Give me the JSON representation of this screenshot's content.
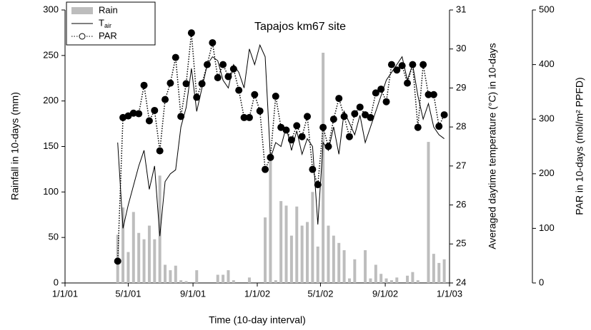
{
  "chart_data": {
    "type": "bar-line",
    "title": "Tapajos km67 site",
    "x_label": "Time (10-day interval)",
    "y_label": "Rainfall in 10-days (mm)",
    "y2_label": "Averaged daytime temperature (°C) in 10-days",
    "y3_label": "PAR in 10-days (mol/m² PPFD)",
    "xlim": [
      0,
      730
    ],
    "xticks": [
      {
        "value": 0,
        "label": "1/1/01"
      },
      {
        "value": 120,
        "label": "5/1/01"
      },
      {
        "value": 243,
        "label": "9/1/01"
      },
      {
        "value": 365,
        "label": "1/1/02"
      },
      {
        "value": 485,
        "label": "5/1/02"
      },
      {
        "value": 608,
        "label": "9/1/02"
      },
      {
        "value": 730,
        "label": "1/1/03"
      }
    ],
    "ylim": [
      0,
      300
    ],
    "yticks": [
      0,
      50,
      100,
      150,
      200,
      250,
      300
    ],
    "y2lim": [
      24,
      31
    ],
    "y2ticks": [
      24,
      25,
      26,
      27,
      28,
      29,
      30,
      31
    ],
    "y3lim": [
      0,
      500
    ],
    "y3ticks": [
      0,
      100,
      200,
      300,
      400,
      500
    ],
    "x": [
      100,
      110,
      120,
      130,
      140,
      150,
      160,
      170,
      180,
      190,
      200,
      210,
      220,
      230,
      240,
      250,
      260,
      270,
      280,
      290,
      300,
      310,
      320,
      330,
      340,
      350,
      360,
      370,
      380,
      390,
      400,
      410,
      420,
      430,
      440,
      450,
      460,
      470,
      480,
      490,
      500,
      510,
      520,
      530,
      540,
      550,
      560,
      570,
      580,
      590,
      600,
      610,
      620,
      630,
      640,
      650,
      660,
      670,
      680,
      690,
      700,
      710,
      720
    ],
    "series": [
      {
        "name": "Rain",
        "color": "#bdbdbd",
        "kind": "bar",
        "axis": "y",
        "values": [
          53,
          83,
          34,
          78,
          55,
          48,
          63,
          48,
          118,
          20,
          14,
          19,
          3,
          2,
          0,
          14,
          0,
          0,
          0,
          9,
          9,
          14,
          3,
          0,
          0,
          6,
          0,
          0,
          72,
          140,
          3,
          90,
          85,
          52,
          84,
          63,
          67,
          100,
          40,
          253,
          63,
          52,
          44,
          36,
          5,
          26,
          0,
          36,
          5,
          20,
          10,
          5,
          3,
          6,
          0,
          8,
          12,
          3,
          0,
          155,
          32,
          22,
          26
        ]
      },
      {
        "name": "Tair",
        "color": "#000000",
        "kind": "line",
        "axis": "y2",
        "values": [
          27.6,
          25.4,
          26.0,
          26.5,
          27.0,
          27.4,
          26.4,
          27.0,
          25.2,
          26.6,
          26.8,
          26.9,
          28.0,
          28.5,
          29.5,
          28.4,
          29.0,
          29.6,
          29.8,
          29.7,
          29.2,
          29.0,
          29.6,
          29.4,
          29.0,
          30.0,
          29.6,
          30.1,
          29.8,
          27.2,
          27.6,
          27.5,
          28.0,
          27.4,
          27.9,
          27.3,
          27.7,
          27.5,
          25.5,
          27.6,
          27.4,
          28.0,
          27.3,
          28.4,
          28.1,
          27.8,
          28.3,
          27.6,
          28.0,
          28.4,
          28.8,
          29.2,
          29.4,
          29.6,
          29.8,
          29.2,
          29.6,
          28.8,
          28.2,
          28.6,
          28.0,
          27.8,
          27.7
        ]
      },
      {
        "name": "PAR",
        "color": "#000000",
        "kind": "dotted-marker",
        "axis": "y3",
        "values": [
          40,
          303,
          306,
          311,
          310,
          362,
          297,
          316,
          242,
          336,
          366,
          413,
          305,
          365,
          458,
          340,
          365,
          400,
          440,
          376,
          400,
          378,
          392,
          353,
          303,
          303,
          345,
          315,
          208,
          230,
          342,
          285,
          280,
          262,
          288,
          268,
          305,
          208,
          180,
          285,
          250,
          300,
          338,
          305,
          268,
          310,
          322,
          308,
          303,
          348,
          355,
          332,
          400,
          390,
          398,
          366,
          400,
          285,
          400,
          345,
          345,
          287,
          308
        ]
      }
    ]
  }
}
